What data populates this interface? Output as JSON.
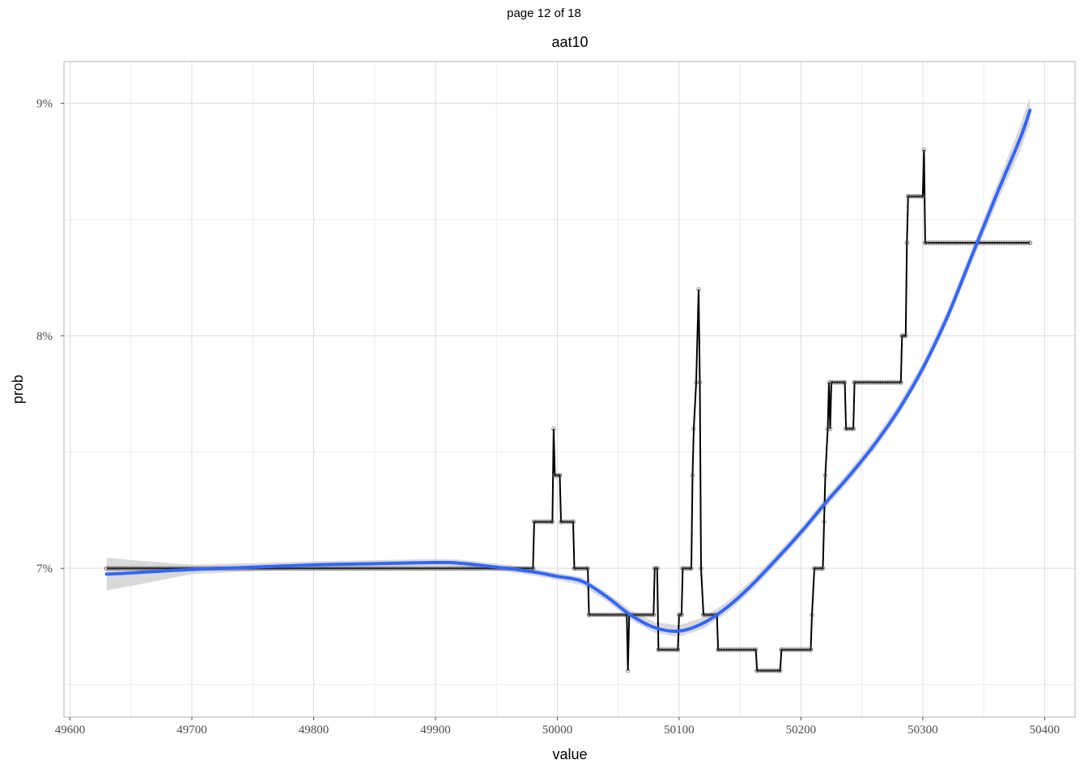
{
  "page_label": "page 12 of 18",
  "chart_data": {
    "type": "line",
    "title": "aat10",
    "xlabel": "value",
    "ylabel": "prob",
    "xlim": [
      49595,
      50425
    ],
    "ylim": [
      0.0636,
      0.0918
    ],
    "x_ticks": [
      49600,
      49700,
      49800,
      49900,
      50000,
      50100,
      50200,
      50300,
      50400
    ],
    "x_tick_labels": [
      "49600",
      "49700",
      "49800",
      "49900",
      "50000",
      "50100",
      "50200",
      "50300",
      "50400"
    ],
    "x_minor_ticks": [
      49650,
      49750,
      49850,
      49950,
      50050,
      50150,
      50250,
      50350
    ],
    "y_ticks": [
      0.07,
      0.08,
      0.09
    ],
    "y_tick_labels": [
      "7%",
      "8%",
      "9%"
    ],
    "y_minor_ticks": [
      0.065,
      0.075,
      0.085
    ],
    "grid": true,
    "legend": "none",
    "series": [
      {
        "kind": "step-line-with-points",
        "color": "#000000",
        "point_color": "#555555",
        "points": [
          [
            49630,
            0.07
          ],
          [
            49980,
            0.07
          ],
          [
            49981,
            0.072
          ],
          [
            49996,
            0.072
          ],
          [
            49997,
            0.076
          ],
          [
            49998,
            0.074
          ],
          [
            50002,
            0.074
          ],
          [
            50003,
            0.072
          ],
          [
            50013,
            0.072
          ],
          [
            50014,
            0.07
          ],
          [
            50025,
            0.07
          ],
          [
            50026,
            0.068
          ],
          [
            50057,
            0.068
          ],
          [
            50058,
            0.0656
          ],
          [
            50059,
            0.068
          ],
          [
            50079,
            0.068
          ],
          [
            50080,
            0.07
          ],
          [
            50082,
            0.07
          ],
          [
            50083,
            0.0665
          ],
          [
            50099,
            0.0665
          ],
          [
            50100,
            0.068
          ],
          [
            50102,
            0.068
          ],
          [
            50103,
            0.07
          ],
          [
            50110,
            0.07
          ],
          [
            50111,
            0.074
          ],
          [
            50112,
            0.076
          ],
          [
            50114,
            0.078
          ],
          [
            50116,
            0.082
          ],
          [
            50117,
            0.078
          ],
          [
            50118,
            0.07
          ],
          [
            50120,
            0.068
          ],
          [
            50131,
            0.068
          ],
          [
            50132,
            0.0665
          ],
          [
            50163,
            0.0665
          ],
          [
            50164,
            0.0656
          ],
          [
            50183,
            0.0656
          ],
          [
            50184,
            0.0665
          ],
          [
            50208,
            0.0665
          ],
          [
            50209,
            0.068
          ],
          [
            50211,
            0.07
          ],
          [
            50218,
            0.07
          ],
          [
            50219,
            0.072
          ],
          [
            50220,
            0.074
          ],
          [
            50222,
            0.076
          ],
          [
            50223,
            0.078
          ],
          [
            50224,
            0.076
          ],
          [
            50225,
            0.078
          ],
          [
            50236,
            0.078
          ],
          [
            50237,
            0.076
          ],
          [
            50243,
            0.076
          ],
          [
            50244,
            0.078
          ],
          [
            50282,
            0.078
          ],
          [
            50283,
            0.08
          ],
          [
            50286,
            0.08
          ],
          [
            50287,
            0.084
          ],
          [
            50288,
            0.086
          ],
          [
            50300,
            0.086
          ],
          [
            50301,
            0.088
          ],
          [
            50302,
            0.084
          ],
          [
            50388,
            0.084
          ]
        ]
      },
      {
        "kind": "smooth",
        "name": "",
        "color": "#3366ff",
        "band_color": "#cccccc",
        "points": [
          [
            49630,
            0.06975
          ],
          [
            49650,
            0.0698
          ],
          [
            49700,
            0.06995
          ],
          [
            49750,
            0.07005
          ],
          [
            49800,
            0.07015
          ],
          [
            49850,
            0.0702
          ],
          [
            49900,
            0.07025
          ],
          [
            49920,
            0.07022
          ],
          [
            49950,
            0.07005
          ],
          [
            49980,
            0.06985
          ],
          [
            50000,
            0.06965
          ],
          [
            50020,
            0.06945
          ],
          [
            50040,
            0.0688
          ],
          [
            50060,
            0.068
          ],
          [
            50080,
            0.06745
          ],
          [
            50100,
            0.0673
          ],
          [
            50120,
            0.06765
          ],
          [
            50140,
            0.06835
          ],
          [
            50160,
            0.0693
          ],
          [
            50180,
            0.0704
          ],
          [
            50200,
            0.07155
          ],
          [
            50220,
            0.0728
          ],
          [
            50240,
            0.074
          ],
          [
            50260,
            0.0753
          ],
          [
            50280,
            0.0768
          ],
          [
            50300,
            0.0786
          ],
          [
            50320,
            0.0808
          ],
          [
            50340,
            0.0834
          ],
          [
            50360,
            0.086
          ],
          [
            50380,
            0.0885
          ],
          [
            50388,
            0.0897
          ]
        ],
        "band_halfwidth": [
          [
            49630,
            0.0007
          ],
          [
            49700,
            0.0002
          ],
          [
            49800,
            0.00015
          ],
          [
            49900,
            0.00015
          ],
          [
            50000,
            0.00015
          ],
          [
            50100,
            0.00025
          ],
          [
            50200,
            0.0002
          ],
          [
            50300,
            0.00025
          ],
          [
            50350,
            0.0003
          ],
          [
            50388,
            0.0006
          ]
        ]
      }
    ]
  }
}
